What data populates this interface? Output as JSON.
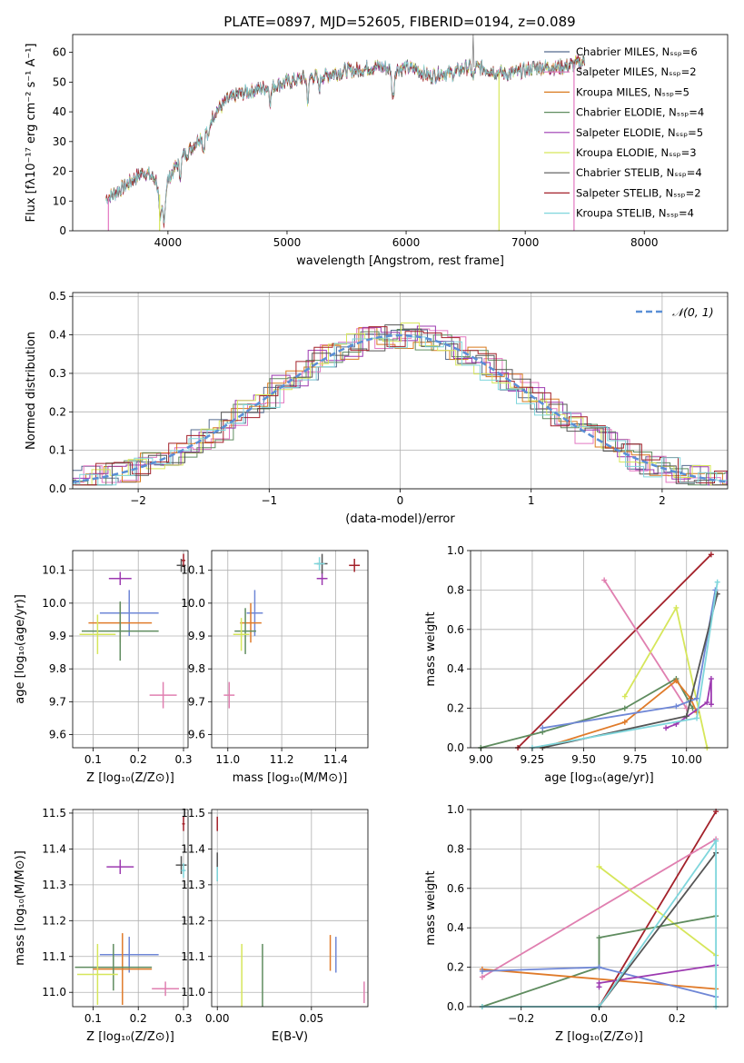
{
  "figure_title": "PLATE=0897, MJD=52605, FIBERID=0194, z=0.089",
  "colors": [
    "#1f77b4",
    "#ff7f0e",
    "#2ca02c",
    "#d62728",
    "#9467bd",
    "#8c564b",
    "#e377c2",
    "#7f7f7f",
    "#bcbd22"
  ],
  "chart_data": [
    {
      "id": "spectrum",
      "type": "line",
      "xlabel": "wavelength [Angstrom, rest frame]",
      "ylabel": "Flux [fλ10⁻¹⁷ erg cm⁻² s⁻¹ A⁻¹]",
      "xlim": [
        3200,
        8700
      ],
      "ylim": [
        0,
        66
      ],
      "xticks": [
        "4000",
        "5000",
        "6000",
        "7000",
        "8000"
      ],
      "yticks": [
        "0",
        "10",
        "20",
        "30",
        "40",
        "50",
        "60"
      ],
      "legend_position": "upper right",
      "series": [
        {
          "name": "Chabrier MILES, Nₛₛₚ=6",
          "color": "#556b8f"
        },
        {
          "name": "Salpeter MILES, Nₛₛₚ=2",
          "color": "#e377c2"
        },
        {
          "name": "Kroupa MILES, Nₛₛₚ=5",
          "color": "#d97a1e"
        },
        {
          "name": "Chabrier ELODIE, Nₛₛₚ=4",
          "color": "#5f8c5f"
        },
        {
          "name": "Salpeter ELODIE, Nₛₛₚ=5",
          "color": "#9c39b0"
        },
        {
          "name": "Kroupa ELODIE, Nₛₛₚ=3",
          "color": "#d6e65a"
        },
        {
          "name": "Chabrier STELIB, Nₛₛₚ=4",
          "color": "#555555"
        },
        {
          "name": "Salpeter STELIB, Nₛₛₚ=2",
          "color": "#a3212a"
        },
        {
          "name": "Kroupa STELIB, Nₛₛₚ=4",
          "color": "#7fd6dc"
        }
      ],
      "continuum": {
        "x": [
          3500,
          3600,
          3700,
          3800,
          3900,
          3950,
          4000,
          4100,
          4200,
          4300,
          4400,
          4500,
          4600,
          4700,
          4800,
          4900,
          5000,
          5100,
          5200,
          5300,
          5400,
          5500,
          5600,
          5700,
          5800,
          5900,
          6000,
          6100,
          6200,
          6300,
          6400,
          6500,
          6600,
          6700,
          6800,
          6900,
          7000,
          7100,
          7200,
          7300,
          7400,
          7500
        ],
        "y": [
          11,
          14,
          17,
          20,
          17,
          9,
          17,
          24,
          28,
          33,
          40,
          44,
          46,
          47,
          48,
          49,
          50,
          51,
          52,
          52,
          53,
          54,
          54,
          55,
          55,
          54,
          55,
          54,
          52,
          53,
          53,
          55,
          55,
          54,
          53,
          53,
          54,
          55,
          55,
          55,
          56,
          57
        ]
      },
      "drops": [
        {
          "x": 3500,
          "series": 1
        },
        {
          "x": 3930,
          "series": 5
        },
        {
          "x": 6780,
          "series": 5
        },
        {
          "x": 7410,
          "series": 1
        }
      ]
    },
    {
      "id": "residuals",
      "type": "line",
      "xlabel": "(data-model)/error",
      "ylabel": "Normed distribution",
      "xlim": [
        -2.5,
        2.5
      ],
      "ylim": [
        0,
        0.51
      ],
      "xticks": [
        "−2",
        "−1",
        "0",
        "1",
        "2"
      ],
      "yticks": [
        "0.0",
        "0.1",
        "0.2",
        "0.3",
        "0.4",
        "0.5"
      ],
      "legend": "𝒩(0, 1)",
      "legend_position": "upper right"
    },
    {
      "id": "age-vs-Z",
      "type": "scatter",
      "xlabel": "Z [log₁₀(Z/Z⊙)]",
      "ylabel": "age  [log₁₀(age/yr)]",
      "xlim": [
        0.055,
        0.31
      ],
      "ylim": [
        9.56,
        10.16
      ],
      "xticks": [
        "0.1",
        "0.2",
        "0.3"
      ],
      "yticks": [
        "9.6",
        "9.7",
        "9.8",
        "9.9",
        "10.0",
        "10.1"
      ],
      "points": [
        {
          "x": 0.18,
          "y": 9.97,
          "xerr": 0.065,
          "yerr": 0.07,
          "color": "#6f87d6"
        },
        {
          "x": 0.16,
          "y": 9.94,
          "xerr": 0.07,
          "yerr": 0.06,
          "color": "#e07b2a"
        },
        {
          "x": 0.16,
          "y": 9.915,
          "xerr": 0.085,
          "yerr": 0.09,
          "color": "#5f8c5f"
        },
        {
          "x": 0.11,
          "y": 9.905,
          "xerr": 0.04,
          "yerr": 0.06,
          "color": "#d6e65a"
        },
        {
          "x": 0.16,
          "y": 10.075,
          "xerr": 0.025,
          "yerr": 0.02,
          "color": "#9c39b0"
        },
        {
          "x": 0.255,
          "y": 9.72,
          "xerr": 0.03,
          "yerr": 0.04,
          "color": "#e07fb0"
        },
        {
          "x": 0.295,
          "y": 10.115,
          "xerr": 0.01,
          "yerr": 0.02,
          "color": "#555555"
        },
        {
          "x": 0.3,
          "y": 10.13,
          "xerr": 0.004,
          "yerr": 0.02,
          "color": "#a3212a"
        }
      ]
    },
    {
      "id": "age-vs-mass",
      "type": "scatter",
      "xlabel": "mass [log₁₀(M/M⊙)]",
      "ylabel": "",
      "xlim": [
        10.94,
        11.52
      ],
      "ylim": [
        9.56,
        10.16
      ],
      "xticks": [
        "11.0",
        "11.2",
        "11.4"
      ],
      "yticks": [
        "9.6",
        "9.7",
        "9.8",
        "9.9",
        "10.0",
        "10.1"
      ],
      "points": [
        {
          "x": 11.1,
          "y": 9.97,
          "xerr": 0.03,
          "yerr": 0.07,
          "color": "#6f87d6"
        },
        {
          "x": 11.085,
          "y": 9.94,
          "xerr": 0.04,
          "yerr": 0.06,
          "color": "#e07b2a"
        },
        {
          "x": 11.065,
          "y": 9.915,
          "xerr": 0.04,
          "yerr": 0.07,
          "color": "#5f8c5f"
        },
        {
          "x": 11.05,
          "y": 9.905,
          "xerr": 0.03,
          "yerr": 0.05,
          "color": "#d6e65a"
        },
        {
          "x": 11.35,
          "y": 10.075,
          "xerr": 0.02,
          "yerr": 0.02,
          "color": "#9c39b0"
        },
        {
          "x": 11.005,
          "y": 9.72,
          "xerr": 0.02,
          "yerr": 0.04,
          "color": "#e07fb0"
        },
        {
          "x": 11.35,
          "y": 10.12,
          "xerr": 0.02,
          "yerr": 0.03,
          "color": "#555555"
        },
        {
          "x": 11.47,
          "y": 10.115,
          "xerr": 0.02,
          "yerr": 0.02,
          "color": "#a3212a"
        },
        {
          "x": 11.34,
          "y": 10.12,
          "xerr": 0.02,
          "yerr": 0.02,
          "color": "#7fd6dc"
        }
      ]
    },
    {
      "id": "weight-vs-age",
      "type": "line",
      "xlabel": "age  [log₁₀(age/yr)]",
      "ylabel": "mass weight",
      "xlim": [
        8.95,
        10.2
      ],
      "ylim": [
        0,
        1
      ],
      "xticks": [
        "9.00",
        "9.25",
        "9.50",
        "9.75",
        "10.00"
      ],
      "yticks": [
        "0.0",
        "0.2",
        "0.4",
        "0.6",
        "0.8",
        "1.0"
      ],
      "series": [
        {
          "color": "#a3212a",
          "x": [
            9.18,
            10.12
          ],
          "y": [
            0.0,
            0.98
          ]
        },
        {
          "color": "#e07fb0",
          "x": [
            9.6,
            10.0
          ],
          "y": [
            0.85,
            0.2
          ]
        },
        {
          "color": "#d6e65a",
          "x": [
            9.7,
            9.95,
            10.1
          ],
          "y": [
            0.26,
            0.71,
            0.0
          ]
        },
        {
          "color": "#5f8c5f",
          "x": [
            9.0,
            9.3,
            9.7,
            9.95,
            10.03
          ],
          "y": [
            0.0,
            0.08,
            0.2,
            0.35,
            0.2
          ]
        },
        {
          "color": "#e07b2a",
          "x": [
            9.3,
            9.7,
            9.95,
            10.02,
            10.05
          ],
          "y": [
            0.0,
            0.13,
            0.34,
            0.25,
            0.18
          ]
        },
        {
          "color": "#6f87d6",
          "x": [
            9.3,
            9.95,
            10.05,
            10.14
          ],
          "y": [
            0.1,
            0.21,
            0.25,
            0.8
          ]
        },
        {
          "color": "#9c39b0",
          "x": [
            9.9,
            9.95,
            10.1,
            10.12,
            10.12
          ],
          "y": [
            0.1,
            0.12,
            0.23,
            0.35,
            0.22
          ]
        },
        {
          "color": "#555555",
          "x": [
            9.3,
            10.0,
            10.15
          ],
          "y": [
            0.0,
            0.16,
            0.78
          ]
        },
        {
          "color": "#7fd6dc",
          "x": [
            9.25,
            10.05,
            10.15
          ],
          "y": [
            0.0,
            0.15,
            0.84
          ]
        }
      ]
    },
    {
      "id": "mass-vs-Z",
      "type": "scatter",
      "xlabel": "Z [log₁₀(Z/Z⊙)]",
      "ylabel": "mass [log₁₀(M/M⊙)]",
      "xlim": [
        0.055,
        0.31
      ],
      "ylim": [
        10.96,
        11.51
      ],
      "xticks": [
        "0.1",
        "0.2",
        "0.3"
      ],
      "yticks": [
        "11.0",
        "11.1",
        "11.2",
        "11.3",
        "11.4",
        "11.5"
      ],
      "points": [
        {
          "x": 0.18,
          "y": 11.105,
          "xerr": 0.065,
          "yerr": 0.05,
          "color": "#6f87d6"
        },
        {
          "x": 0.165,
          "y": 11.065,
          "xerr": 0.065,
          "yerr": 0.1,
          "color": "#e07b2a"
        },
        {
          "x": 0.145,
          "y": 11.07,
          "xerr": 0.085,
          "yerr": 0.065,
          "color": "#5f8c5f"
        },
        {
          "x": 0.11,
          "y": 11.05,
          "xerr": 0.045,
          "yerr": 0.085,
          "color": "#d6e65a"
        },
        {
          "x": 0.16,
          "y": 11.35,
          "xerr": 0.03,
          "yerr": 0.02,
          "color": "#9c39b0"
        },
        {
          "x": 0.26,
          "y": 11.01,
          "xerr": 0.03,
          "yerr": 0.02,
          "color": "#e07fb0"
        },
        {
          "x": 0.295,
          "y": 11.355,
          "xerr": 0.012,
          "yerr": 0.025,
          "color": "#555555"
        },
        {
          "x": 0.3,
          "y": 11.47,
          "xerr": 0.003,
          "yerr": 0.02,
          "color": "#a3212a"
        },
        {
          "x": 0.3,
          "y": 11.34,
          "xerr": 0.005,
          "yerr": 0.02,
          "color": "#7fd6dc"
        }
      ]
    },
    {
      "id": "mass-vs-ebv",
      "type": "scatter",
      "xlabel": "E(B-V)",
      "ylabel": "",
      "xlim": [
        -0.003,
        0.08
      ],
      "ylim": [
        10.96,
        11.51
      ],
      "xticks": [
        "0.00",
        "0.05"
      ],
      "yticks": [
        "11.0",
        "11.1",
        "11.2",
        "11.3",
        "11.4",
        "11.5"
      ],
      "points": [
        {
          "x": 0.0,
          "y": 11.47,
          "xerr": 0,
          "yerr": 0.02,
          "color": "#a3212a"
        },
        {
          "x": 0.0,
          "y": 11.35,
          "xerr": 0,
          "yerr": 0.04,
          "color": "#555555"
        },
        {
          "x": 0.0,
          "y": 11.33,
          "xerr": 0,
          "yerr": 0.02,
          "color": "#7fd6dc"
        },
        {
          "x": 0.013,
          "y": 11.045,
          "xerr": 0,
          "yerr": 0.09,
          "color": "#d6e65a"
        },
        {
          "x": 0.024,
          "y": 11.045,
          "xerr": 0,
          "yerr": 0.09,
          "color": "#5f8c5f"
        },
        {
          "x": 0.06,
          "y": 11.11,
          "xerr": 0,
          "yerr": 0.05,
          "color": "#e07b2a"
        },
        {
          "x": 0.063,
          "y": 11.105,
          "xerr": 0,
          "yerr": 0.05,
          "color": "#6f87d6"
        },
        {
          "x": 0.078,
          "y": 11.0,
          "xerr": 0,
          "yerr": 0.03,
          "color": "#e07fb0"
        }
      ]
    },
    {
      "id": "weight-vs-Z",
      "type": "line",
      "xlabel": "Z [log₁₀(Z/Z⊙)]",
      "ylabel": "mass weight",
      "xlim": [
        -0.33,
        0.33
      ],
      "ylim": [
        0,
        1
      ],
      "xticks": [
        "−0.2",
        "0.0",
        "0.2"
      ],
      "yticks": [
        "0.0",
        "0.2",
        "0.4",
        "0.6",
        "0.8",
        "1.0"
      ],
      "series": [
        {
          "color": "#a3212a",
          "x": [
            0.0,
            0.3
          ],
          "y": [
            0.0,
            0.99
          ]
        },
        {
          "color": "#e07fb0",
          "x": [
            -0.3,
            0.3
          ],
          "y": [
            0.15,
            0.85
          ]
        },
        {
          "color": "#d6e65a",
          "x": [
            0.0,
            0.3
          ],
          "y": [
            0.71,
            0.26
          ]
        },
        {
          "color": "#5f8c5f",
          "x": [
            -0.3,
            0.0,
            0.0,
            0.3
          ],
          "y": [
            0.0,
            0.2,
            0.35,
            0.46
          ]
        },
        {
          "color": "#e07b2a",
          "x": [
            -0.3,
            0.3
          ],
          "y": [
            0.19,
            0.09
          ]
        },
        {
          "color": "#6f87d6",
          "x": [
            -0.3,
            0.0,
            0.3
          ],
          "y": [
            0.18,
            0.2,
            0.05
          ]
        },
        {
          "color": "#9c39b0",
          "x": [
            0.0,
            0.0,
            0.3
          ],
          "y": [
            0.1,
            0.12,
            0.21
          ]
        },
        {
          "color": "#555555",
          "x": [
            0.0,
            0.3
          ],
          "y": [
            0.0,
            0.78
          ]
        },
        {
          "color": "#7fd6dc",
          "x": [
            -0.3,
            0.0,
            0.3,
            0.3
          ],
          "y": [
            0.0,
            0.0,
            0.84,
            0.0
          ]
        }
      ]
    }
  ]
}
